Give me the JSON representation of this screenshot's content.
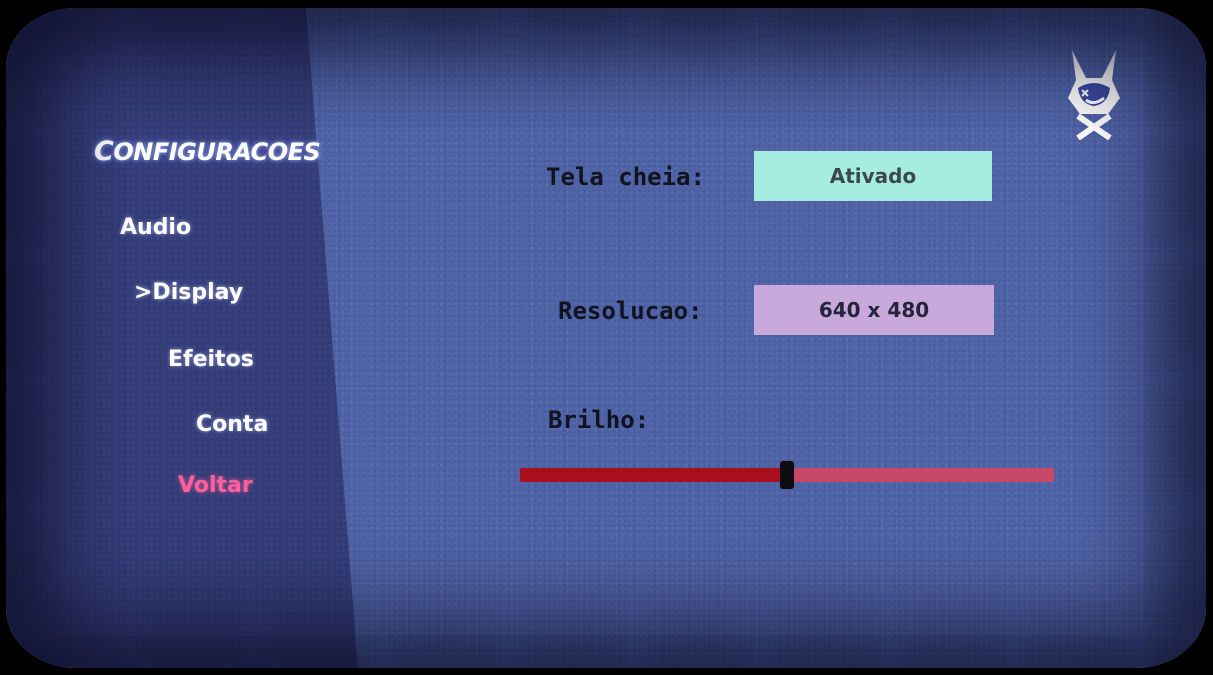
{
  "menu": {
    "title_first": "C",
    "title_rest": "ONFIGURACOES",
    "items": [
      {
        "label": "Audio"
      },
      {
        "label": ">Display"
      },
      {
        "label": "Efeitos"
      },
      {
        "label": "Conta"
      }
    ],
    "back_label": "Voltar"
  },
  "display": {
    "fullscreen_label": "Tela cheia:",
    "fullscreen_value": "Ativado",
    "resolution_label": "Resolucao:",
    "resolution_value": "640 x 480",
    "brightness_label": "Brilho:",
    "brightness_value": 0.5
  },
  "icons": {
    "logo": "rabbit-mascot-logo"
  },
  "colors": {
    "fullscreen_box": "#a7ece0",
    "resolution_box": "#c7a9dc",
    "slider_fill": "#a80f1c",
    "slider_track": "#c8486a",
    "back_item": "#ff5f9a"
  }
}
